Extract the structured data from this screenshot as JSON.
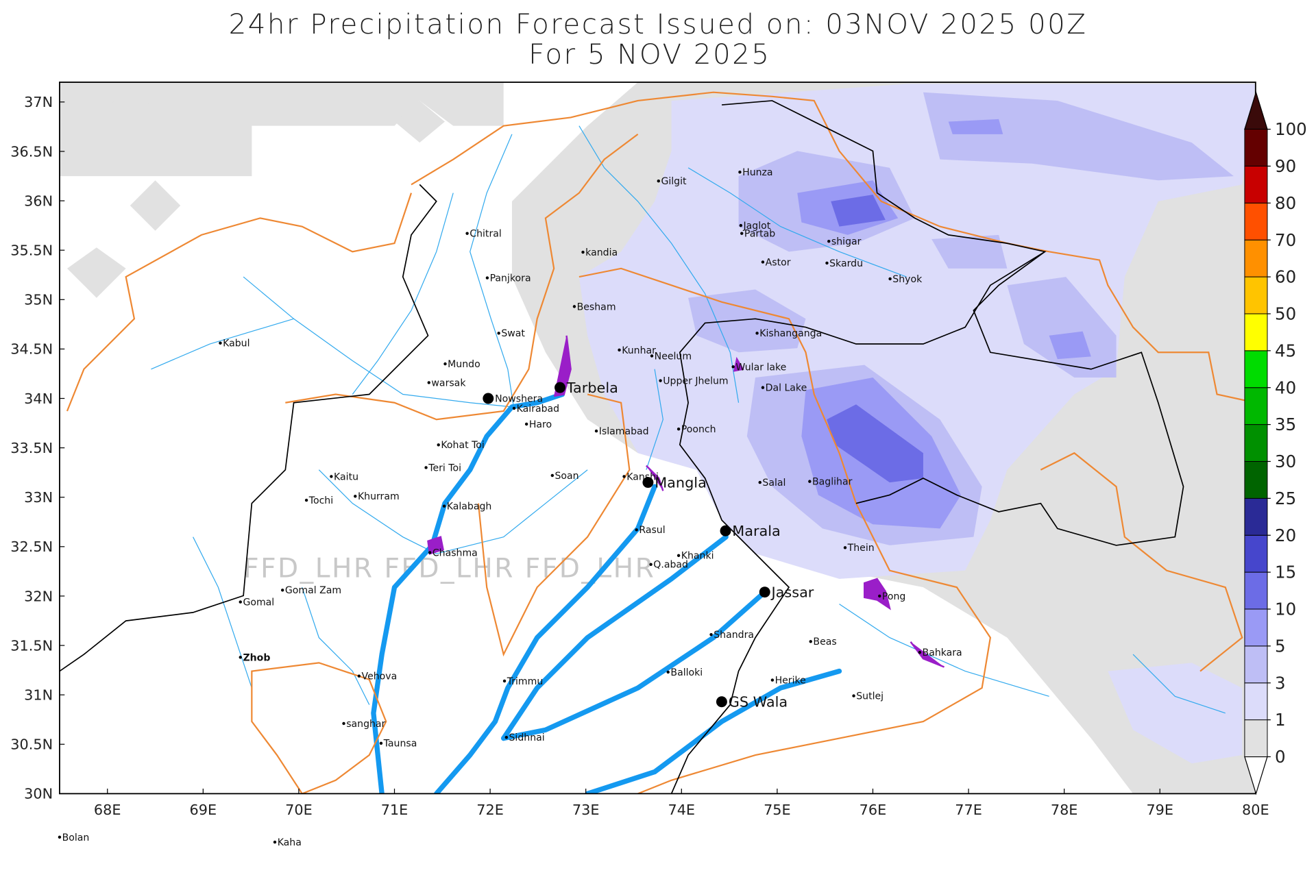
{
  "map": {
    "type": "map",
    "title": [
      "24hr Precipitation Forecast Issued on:  03NOV 2025 00Z",
      "For 5 NOV 2025"
    ],
    "xlim": [
      67.5,
      80
    ],
    "ylim": [
      30,
      37.2
    ],
    "xticks": [
      {
        "value": 68,
        "label": "68E"
      },
      {
        "value": 69,
        "label": "69E"
      },
      {
        "value": 70,
        "label": "70E"
      },
      {
        "value": 71,
        "label": "71E"
      },
      {
        "value": 72,
        "label": "72E"
      },
      {
        "value": 73,
        "label": "73E"
      },
      {
        "value": 74,
        "label": "74E"
      },
      {
        "value": 75,
        "label": "75E"
      },
      {
        "value": 76,
        "label": "76E"
      },
      {
        "value": 77,
        "label": "77E"
      },
      {
        "value": 78,
        "label": "78E"
      },
      {
        "value": 79,
        "label": "79E"
      },
      {
        "value": 80,
        "label": "80E"
      }
    ],
    "yticks": [
      {
        "value": 30,
        "label": "30N"
      },
      {
        "value": 30.5,
        "label": "30.5N"
      },
      {
        "value": 31,
        "label": "31N"
      },
      {
        "value": 31.5,
        "label": "31.5N"
      },
      {
        "value": 32,
        "label": "32N"
      },
      {
        "value": 32.5,
        "label": "32.5N"
      },
      {
        "value": 33,
        "label": "33N"
      },
      {
        "value": 33.5,
        "label": "33.5N"
      },
      {
        "value": 34,
        "label": "34N"
      },
      {
        "value": 34.5,
        "label": "34.5N"
      },
      {
        "value": 35,
        "label": "35N"
      },
      {
        "value": 35.5,
        "label": "35.5N"
      },
      {
        "value": 36,
        "label": "36N"
      },
      {
        "value": 36.5,
        "label": "36.5N"
      },
      {
        "value": 37,
        "label": "37N"
      }
    ],
    "watermark": "FFD_LHR FFD_LHR FFD_LHR",
    "colorbar": {
      "levels": [
        0,
        1,
        3,
        5,
        10,
        15,
        20,
        25,
        30,
        35,
        40,
        45,
        50,
        60,
        70,
        80,
        90,
        100
      ],
      "colors": [
        "#e1e1e1",
        "#dcdcfa",
        "#bebef5",
        "#9a9af5",
        "#6c6ce6",
        "#4646cc",
        "#2a2a96",
        "#006400",
        "#009000",
        "#00b800",
        "#00dc00",
        "#ffff00",
        "#ffc400",
        "#ff9000",
        "#ff5000",
        "#c80000",
        "#640000"
      ],
      "below_color": "#ffffff",
      "above_color": "#3a0a0a"
    },
    "places": [
      {
        "name": "Hunza",
        "lon": 74.61,
        "lat": 36.29,
        "size": "small"
      },
      {
        "name": "Gilgit",
        "lon": 73.76,
        "lat": 36.2,
        "size": "small"
      },
      {
        "name": "Chitral",
        "lon": 71.76,
        "lat": 35.67,
        "size": "small"
      },
      {
        "name": "Jaglot",
        "lon": 74.62,
        "lat": 35.75,
        "size": "small"
      },
      {
        "name": "Partab",
        "lon": 74.63,
        "lat": 35.67,
        "size": "small"
      },
      {
        "name": "shigar",
        "lon": 75.54,
        "lat": 35.59,
        "size": "small"
      },
      {
        "name": "kandia",
        "lon": 72.97,
        "lat": 35.48,
        "size": "small"
      },
      {
        "name": "Panjkora",
        "lon": 71.97,
        "lat": 35.22,
        "size": "small"
      },
      {
        "name": "Astor",
        "lon": 74.85,
        "lat": 35.38,
        "size": "small"
      },
      {
        "name": "Skardu",
        "lon": 75.52,
        "lat": 35.37,
        "size": "small"
      },
      {
        "name": "Shyok",
        "lon": 76.18,
        "lat": 35.21,
        "size": "small"
      },
      {
        "name": "Besham",
        "lon": 72.88,
        "lat": 34.93,
        "size": "small"
      },
      {
        "name": "Swat",
        "lon": 72.09,
        "lat": 34.66,
        "size": "small"
      },
      {
        "name": "Kishanganga",
        "lon": 74.79,
        "lat": 34.66,
        "size": "small"
      },
      {
        "name": "Kabul",
        "lon": 69.18,
        "lat": 34.56,
        "size": "small"
      },
      {
        "name": "Kunhar",
        "lon": 73.35,
        "lat": 34.49,
        "size": "small"
      },
      {
        "name": "Neelum",
        "lon": 73.69,
        "lat": 34.43,
        "size": "small"
      },
      {
        "name": "Mundo",
        "lon": 71.53,
        "lat": 34.35,
        "size": "small"
      },
      {
        "name": "Wular lake",
        "lon": 74.54,
        "lat": 34.32,
        "size": "small"
      },
      {
        "name": "Upper Jhelum",
        "lon": 73.78,
        "lat": 34.18,
        "size": "small"
      },
      {
        "name": "warsak",
        "lon": 71.36,
        "lat": 34.16,
        "size": "small"
      },
      {
        "name": "Dal Lake",
        "lon": 74.85,
        "lat": 34.11,
        "size": "small"
      },
      {
        "name": "Tarbela",
        "lon": 72.73,
        "lat": 34.11,
        "size": "large"
      },
      {
        "name": "Nowshera",
        "lon": 71.98,
        "lat": 34.0,
        "size": "large-small-label"
      },
      {
        "name": "Kairabad",
        "lon": 72.25,
        "lat": 33.9,
        "size": "small"
      },
      {
        "name": "Haro",
        "lon": 72.38,
        "lat": 33.74,
        "size": "small"
      },
      {
        "name": "Islamabad",
        "lon": 73.11,
        "lat": 33.67,
        "size": "small"
      },
      {
        "name": "Poonch",
        "lon": 73.97,
        "lat": 33.69,
        "size": "small"
      },
      {
        "name": "Kohat Toi",
        "lon": 71.46,
        "lat": 33.53,
        "size": "small"
      },
      {
        "name": "Teri Toi",
        "lon": 71.33,
        "lat": 33.3,
        "size": "small"
      },
      {
        "name": "Soan",
        "lon": 72.65,
        "lat": 33.22,
        "size": "small"
      },
      {
        "name": "Kaitu",
        "lon": 70.34,
        "lat": 33.21,
        "size": "small"
      },
      {
        "name": "Kanshi",
        "lon": 73.4,
        "lat": 33.21,
        "size": "small"
      },
      {
        "name": "Mangla",
        "lon": 73.65,
        "lat": 33.15,
        "size": "large"
      },
      {
        "name": "Salal",
        "lon": 74.82,
        "lat": 33.15,
        "size": "small"
      },
      {
        "name": "Baglihar",
        "lon": 75.34,
        "lat": 33.16,
        "size": "small"
      },
      {
        "name": "Khurram",
        "lon": 70.59,
        "lat": 33.01,
        "size": "small"
      },
      {
        "name": "Tochi",
        "lon": 70.08,
        "lat": 32.97,
        "size": "small"
      },
      {
        "name": "Kalabagh",
        "lon": 71.52,
        "lat": 32.91,
        "size": "small"
      },
      {
        "name": "Rasul",
        "lon": 73.53,
        "lat": 32.67,
        "size": "small"
      },
      {
        "name": "Marala",
        "lon": 74.46,
        "lat": 32.66,
        "size": "large"
      },
      {
        "name": "Thein",
        "lon": 75.71,
        "lat": 32.49,
        "size": "small"
      },
      {
        "name": "Chashma",
        "lon": 71.37,
        "lat": 32.44,
        "size": "small"
      },
      {
        "name": "Khanki",
        "lon": 73.97,
        "lat": 32.41,
        "size": "small"
      },
      {
        "name": "Q.abad",
        "lon": 73.68,
        "lat": 32.32,
        "size": "small"
      },
      {
        "name": "Gomal Zam",
        "lon": 69.83,
        "lat": 32.06,
        "size": "small"
      },
      {
        "name": "Gomal",
        "lon": 69.39,
        "lat": 31.94,
        "size": "small"
      },
      {
        "name": "Jassar",
        "lon": 74.87,
        "lat": 32.04,
        "size": "large"
      },
      {
        "name": "Pong",
        "lon": 76.07,
        "lat": 32.0,
        "size": "small"
      },
      {
        "name": "Shandra",
        "lon": 74.31,
        "lat": 31.61,
        "size": "small"
      },
      {
        "name": "Beas",
        "lon": 75.35,
        "lat": 31.54,
        "size": "small"
      },
      {
        "name": "Bahkara",
        "lon": 76.49,
        "lat": 31.43,
        "size": "small"
      },
      {
        "name": "Zhob",
        "lon": 69.39,
        "lat": 31.38,
        "size": "bold"
      },
      {
        "name": "Vehova",
        "lon": 70.63,
        "lat": 31.19,
        "size": "small"
      },
      {
        "name": "Balloki",
        "lon": 73.86,
        "lat": 31.23,
        "size": "small"
      },
      {
        "name": "Trimmu",
        "lon": 72.15,
        "lat": 31.14,
        "size": "small"
      },
      {
        "name": "Herike",
        "lon": 74.95,
        "lat": 31.15,
        "size": "small"
      },
      {
        "name": "Sutlej",
        "lon": 75.8,
        "lat": 30.99,
        "size": "small"
      },
      {
        "name": "GS Wala",
        "lon": 74.42,
        "lat": 30.93,
        "size": "large"
      },
      {
        "name": "sanghar",
        "lon": 70.47,
        "lat": 30.71,
        "size": "small"
      },
      {
        "name": "Sidhnai",
        "lon": 72.17,
        "lat": 30.57,
        "size": "small"
      },
      {
        "name": "Taunsa",
        "lon": 70.86,
        "lat": 30.51,
        "size": "small"
      },
      {
        "name": "Bolan",
        "lon": 67.5,
        "lat": 29.56,
        "size": "small"
      },
      {
        "name": "Kaha",
        "lon": 69.75,
        "lat": 29.51,
        "size": "small"
      }
    ]
  }
}
